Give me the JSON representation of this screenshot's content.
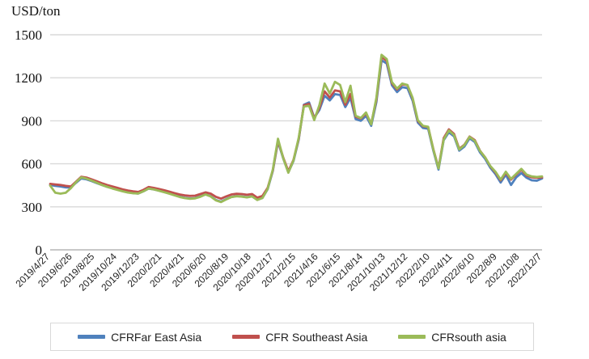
{
  "chart_data": {
    "type": "line",
    "unit_label": "USD/ton",
    "x_range": [
      "2019/4/27",
      "2022/12/7"
    ],
    "x_tick_labels": [
      "2019/4/27",
      "2019/6/26",
      "2019/8/25",
      "2019/10/24",
      "2019/12/23",
      "2020/2/21",
      "2020/4/21",
      "2020/6/20",
      "2020/8/19",
      "2020/10/18",
      "2020/12/17",
      "2021/2/15",
      "2021/4/16",
      "2021/6/15",
      "2021/8/14",
      "2021/10/13",
      "2021/12/12",
      "2022/2/10",
      "2022/4/11",
      "2022/6/10",
      "2022/8/9",
      "2022/10/8",
      "2022/12/7"
    ],
    "yticks": [
      0,
      300,
      600,
      900,
      1200,
      1500
    ],
    "ylim": [
      0,
      1500
    ],
    "grid": "horizontal",
    "legend_position": "bottom",
    "series": [
      {
        "name": "CFRFar East Asia",
        "color": "#4F81BD",
        "values": [
          452,
          446,
          442,
          436,
          434,
          468,
          498,
          492,
          480,
          466,
          452,
          440,
          430,
          420,
          410,
          402,
          396,
          393,
          408,
          427,
          421,
          413,
          404,
          394,
          382,
          371,
          363,
          358,
          361,
          372,
          387,
          374,
          348,
          336,
          354,
          369,
          375,
          372,
          367,
          373,
          349,
          362,
          423,
          550,
          755,
          638,
          540,
          620,
          768,
          1012,
          1028,
          921,
          976,
          1075,
          1042,
          1086,
          1080,
          996,
          1060,
          912,
          900,
          935,
          865,
          1030,
          1322,
          1300,
          1148,
          1100,
          1135,
          1128,
          1040,
          888,
          850,
          845,
          692,
          560,
          765,
          820,
          792,
          692,
          720,
          778,
          752,
          680,
          635,
          573,
          528,
          470,
          524,
          452,
          505,
          535,
          503,
          485,
          482,
          498
        ]
      },
      {
        "name": "CFR Southeast Asia",
        "color": "#C0504D",
        "values": [
          460,
          456,
          452,
          446,
          442,
          476,
          510,
          504,
          492,
          478,
          464,
          452,
          442,
          432,
          422,
          414,
          408,
          404,
          418,
          438,
          432,
          424,
          416,
          406,
          396,
          386,
          380,
          376,
          378,
          389,
          401,
          392,
          370,
          357,
          373,
          386,
          391,
          389,
          384,
          389,
          364,
          376,
          432,
          555,
          762,
          645,
          548,
          628,
          775,
          1008,
          1018,
          916,
          992,
          1105,
          1062,
          1112,
          1105,
          1012,
          1088,
          928,
          916,
          950,
          880,
          1048,
          1345,
          1318,
          1162,
          1118,
          1155,
          1148,
          1055,
          900,
          862,
          856,
          702,
          572,
          780,
          840,
          808,
          705,
          733,
          790,
          765,
          692,
          645,
          583,
          540,
          485,
          538,
          490,
          525,
          558,
          518,
          506,
          503,
          505
        ]
      },
      {
        "name": "CFRsouth asia",
        "color": "#9BBB59",
        "values": [
          448,
          398,
          392,
          398,
          430,
          472,
          505,
          497,
          483,
          468,
          452,
          440,
          428,
          418,
          408,
          400,
          395,
          393,
          408,
          428,
          422,
          412,
          402,
          392,
          380,
          369,
          361,
          356,
          359,
          370,
          386,
          372,
          345,
          333,
          352,
          368,
          374,
          371,
          366,
          373,
          348,
          362,
          425,
          560,
          775,
          640,
          538,
          625,
          782,
          1000,
          1005,
          905,
          1010,
          1160,
          1090,
          1172,
          1150,
          1030,
          1145,
          935,
          920,
          958,
          875,
          1060,
          1360,
          1330,
          1170,
          1125,
          1160,
          1150,
          1060,
          905,
          865,
          858,
          700,
          568,
          770,
          833,
          800,
          700,
          730,
          788,
          760,
          690,
          645,
          585,
          545,
          490,
          545,
          495,
          530,
          565,
          525,
          512,
          508,
          512
        ]
      }
    ]
  },
  "colors": {
    "gridline": "#d9d9d9",
    "axis_line": "#c8c8c8",
    "tick_text": "#111111",
    "legend_border": "#d9d9d9"
  }
}
